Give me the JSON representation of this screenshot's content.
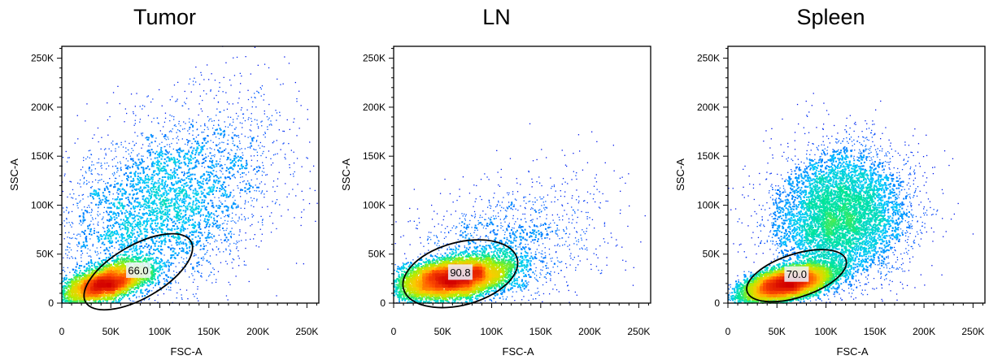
{
  "chart_data": [
    {
      "type": "scatter",
      "title": "Tumor",
      "xlabel": "FSC-A",
      "ylabel": "SSC-A",
      "xlim": [
        0,
        262144
      ],
      "ylim": [
        0,
        262144
      ],
      "xticks": [
        {
          "v": 0,
          "label": "0"
        },
        {
          "v": 50000,
          "label": "50K"
        },
        {
          "v": 100000,
          "label": "100K"
        },
        {
          "v": 150000,
          "label": "150K"
        },
        {
          "v": 200000,
          "label": "200K"
        },
        {
          "v": 250000,
          "label": "250K"
        }
      ],
      "yticks": [
        {
          "v": 0,
          "label": "0"
        },
        {
          "v": 50000,
          "label": "50K"
        },
        {
          "v": 100000,
          "label": "100K"
        },
        {
          "v": 150000,
          "label": "150K"
        },
        {
          "v": 200000,
          "label": "200K"
        },
        {
          "v": 250000,
          "label": "250K"
        }
      ],
      "gate": {
        "label": "66.0",
        "cx": 78000,
        "cy": 32000,
        "rx": 62000,
        "ry": 27000,
        "angle_deg": 30
      },
      "populations": [
        {
          "cx": 45000,
          "cy": 20000,
          "sx": 22000,
          "sy": 10000,
          "rho": 0.55,
          "weight": 0.5
        },
        {
          "cx": 100000,
          "cy": 95000,
          "sx": 60000,
          "sy": 55000,
          "rho": 0.45,
          "weight": 0.5
        }
      ],
      "event_count": 8000
    },
    {
      "type": "scatter",
      "title": "LN",
      "xlabel": "FSC-A",
      "ylabel": "SSC-A",
      "xlim": [
        0,
        262144
      ],
      "ylim": [
        0,
        262144
      ],
      "xticks": [
        {
          "v": 0,
          "label": "0"
        },
        {
          "v": 50000,
          "label": "50K"
        },
        {
          "v": 100000,
          "label": "100K"
        },
        {
          "v": 150000,
          "label": "150K"
        },
        {
          "v": 200000,
          "label": "200K"
        },
        {
          "v": 250000,
          "label": "250K"
        }
      ],
      "yticks": [
        {
          "v": 0,
          "label": "0"
        },
        {
          "v": 50000,
          "label": "50K"
        },
        {
          "v": 100000,
          "label": "100K"
        },
        {
          "v": 150000,
          "label": "150K"
        },
        {
          "v": 200000,
          "label": "200K"
        },
        {
          "v": 250000,
          "label": "250K"
        }
      ],
      "gate": {
        "label": "90.8",
        "cx": 68000,
        "cy": 30000,
        "rx": 60000,
        "ry": 32000,
        "angle_deg": 15
      },
      "populations": [
        {
          "cx": 60000,
          "cy": 25000,
          "sx": 27000,
          "sy": 10000,
          "rho": 0.35,
          "weight": 0.8
        },
        {
          "cx": 100000,
          "cy": 45000,
          "sx": 55000,
          "sy": 40000,
          "rho": 0.5,
          "weight": 0.2
        }
      ],
      "event_count": 9000
    },
    {
      "type": "scatter",
      "title": "Spleen",
      "xlabel": "FSC-A",
      "ylabel": "SSC-A",
      "xlim": [
        0,
        262144
      ],
      "ylim": [
        0,
        262144
      ],
      "xticks": [
        {
          "v": 0,
          "label": "0"
        },
        {
          "v": 50000,
          "label": "50K"
        },
        {
          "v": 100000,
          "label": "100K"
        },
        {
          "v": 150000,
          "label": "150K"
        },
        {
          "v": 200000,
          "label": "200K"
        },
        {
          "v": 250000,
          "label": "250K"
        }
      ],
      "yticks": [
        {
          "v": 0,
          "label": "0"
        },
        {
          "v": 50000,
          "label": "50K"
        },
        {
          "v": 100000,
          "label": "100K"
        },
        {
          "v": 150000,
          "label": "150K"
        },
        {
          "v": 200000,
          "label": "200K"
        },
        {
          "v": 250000,
          "label": "250K"
        }
      ],
      "gate": {
        "label": "70.0",
        "cx": 70000,
        "cy": 28000,
        "rx": 53000,
        "ry": 22000,
        "angle_deg": 18
      },
      "populations": [
        {
          "cx": 60000,
          "cy": 20000,
          "sx": 22000,
          "sy": 9000,
          "rho": 0.5,
          "weight": 0.6
        },
        {
          "cx": 115000,
          "cy": 90000,
          "sx": 35000,
          "sy": 35000,
          "rho": 0.1,
          "weight": 0.4
        }
      ],
      "event_count": 14000
    }
  ]
}
